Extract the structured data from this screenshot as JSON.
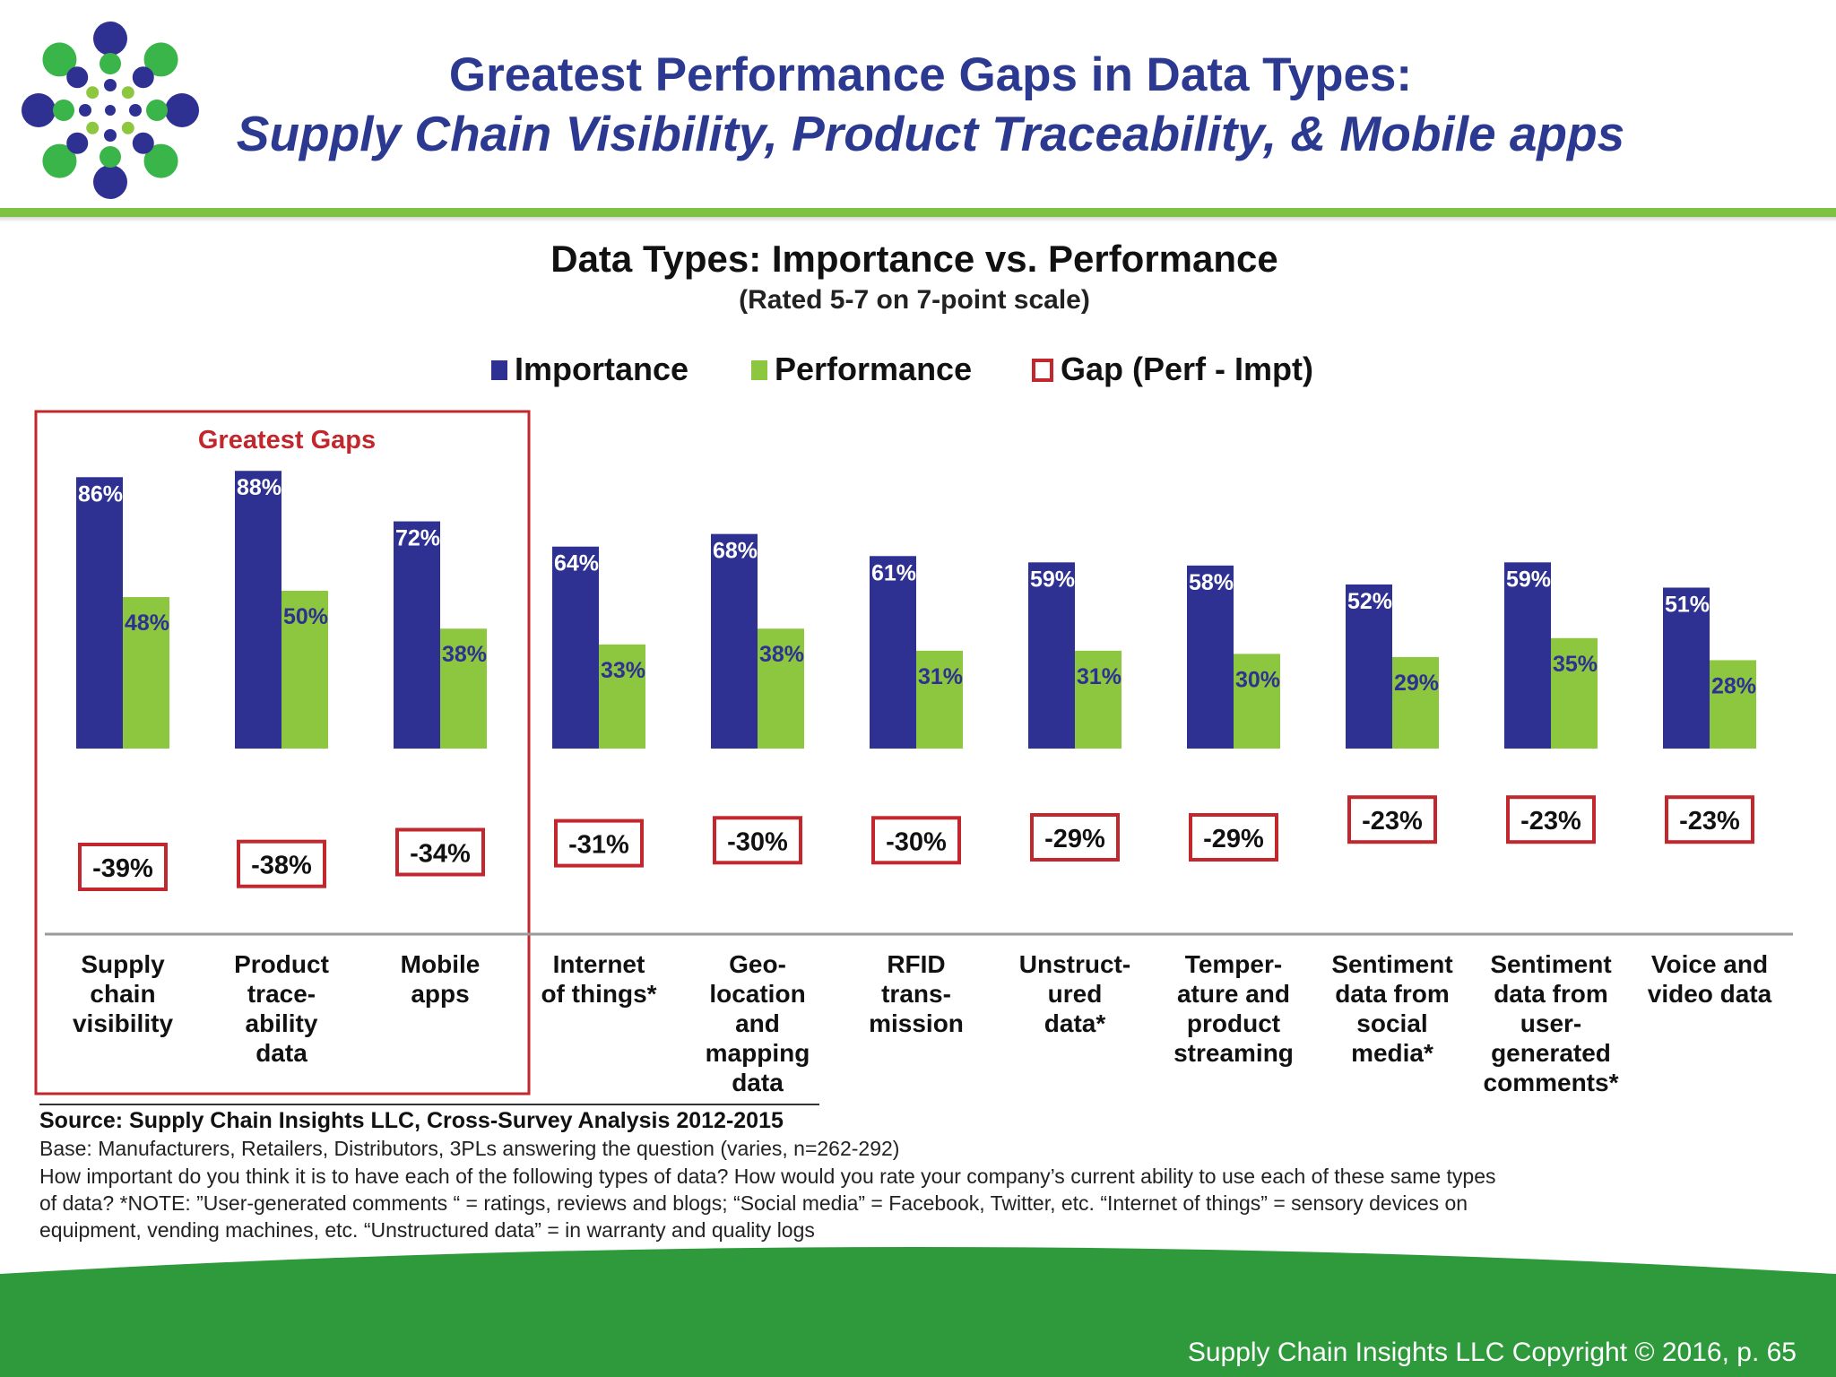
{
  "header": {
    "title_line1": "Greatest Performance Gaps in Data Types:",
    "title_line2": "Supply Chain Visibility, Product Traceability, & Mobile apps"
  },
  "footer": {
    "copyright": "Supply Chain Insights LLC Copyright © 2016, p. 65"
  },
  "colors": {
    "title": "#2b3990",
    "importance": "#2e3192",
    "performance": "#8dc63f",
    "gap_box": "#c1272d",
    "accent_green": "#7dc242",
    "footer_green": "#2e9a3c"
  },
  "highlight": {
    "label": "Greatest Gaps"
  },
  "source": {
    "title": "Source:  Supply Chain Insights LLC, Cross-Survey Analysis 2012-2015",
    "base": "Base:  Manufacturers, Retailers, Distributors, 3PLs answering the question (varies, n=262-292)",
    "note_1": "How important do you think it is to have each of the following types of data?  How would you rate your company’s current ability to use each of these same types",
    "note_2": "of data? *NOTE: ”User-generated comments “ = ratings, reviews and blogs; “Social media” = Facebook, Twitter, etc. “Internet of things” = sensory devices on",
    "note_3": "equipment, vending machines, etc. “Unstructured data” = in warranty  and quality logs"
  },
  "chart_data": {
    "type": "bar",
    "title": "Data Types:  Importance vs. Performance",
    "subtitle": "(Rated 5-7 on 7-point scale)",
    "legend_position": "top-center",
    "legend": [
      "Importance",
      "Performance",
      "Gap (Perf - Impt)"
    ],
    "categories": [
      [
        "Supply",
        "chain",
        "visibility"
      ],
      [
        "Product",
        "trace-",
        "ability",
        "data"
      ],
      [
        "Mobile",
        "apps"
      ],
      [
        "Internet",
        "of things*"
      ],
      [
        "Geo-",
        "location",
        "and",
        "mapping",
        "data"
      ],
      [
        "RFID",
        "trans-",
        "mission"
      ],
      [
        "Unstruct-",
        "ured",
        "data*"
      ],
      [
        "Temper-",
        "ature and",
        "product",
        "streaming"
      ],
      [
        "Sentiment",
        "data from",
        "social",
        "media*"
      ],
      [
        "Sentiment",
        "data from",
        "user-",
        "generated",
        "comments*"
      ],
      [
        "Voice and",
        "video data"
      ]
    ],
    "series": [
      {
        "name": "Importance",
        "values": [
          86,
          88,
          72,
          64,
          68,
          61,
          59,
          58,
          52,
          59,
          51
        ],
        "labels": [
          "86%",
          "88%",
          "72%",
          "64%",
          "68%",
          "61%",
          "59%",
          "58%",
          "52%",
          "59%",
          "51%"
        ]
      },
      {
        "name": "Performance",
        "values": [
          48,
          50,
          38,
          33,
          38,
          31,
          31,
          30,
          29,
          35,
          28
        ],
        "labels": [
          "48%",
          "50%",
          "38%",
          "33%",
          "38%",
          "31%",
          "31%",
          "30%",
          "29%",
          "35%",
          "28%"
        ]
      },
      {
        "name": "Gap (Perf - Impt)",
        "values": [
          -39,
          -38,
          -34,
          -31,
          -30,
          -30,
          -29,
          -29,
          -23,
          -23,
          -23
        ],
        "labels": [
          "-39%",
          "-38%",
          "-34%",
          "-31%",
          "-30%",
          "-30%",
          "-29%",
          "-29%",
          "-23%",
          "-23%",
          "-23%"
        ]
      }
    ],
    "highlighted_categories": [
      0,
      1,
      2
    ],
    "ylim": [
      0,
      100
    ],
    "grid": false
  }
}
